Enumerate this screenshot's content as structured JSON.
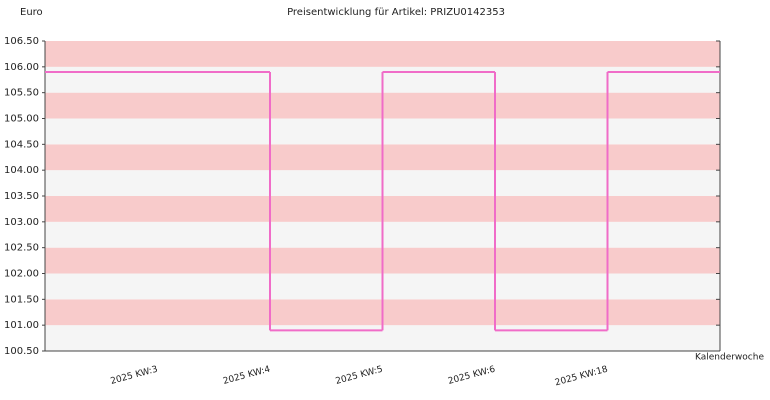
{
  "chart_data": {
    "type": "step",
    "title": "Preisentwicklung für Artikel: PRIZU0142353",
    "y_label": "Euro",
    "x_label": "Kalenderwoche",
    "categories": [
      null,
      "2025 KW:3",
      "2025 KW:4",
      "2025 KW:5",
      "2025 KW:6",
      "2025 KW:18"
    ],
    "series": [
      {
        "name": null,
        "color": "#f06cc8",
        "values": [
          105.9,
          105.9,
          100.9,
          105.9,
          100.9,
          105.9
        ]
      }
    ],
    "ylim": [
      100.5,
      106.5
    ],
    "yticks": [
      {
        "value": 100.5,
        "label": "100.50"
      },
      {
        "value": 101,
        "label": "101.00"
      },
      {
        "value": 101.5,
        "label": "101.50"
      },
      {
        "value": 102,
        "label": "102.00"
      },
      {
        "value": 102.5,
        "label": "102.50"
      },
      {
        "value": 103,
        "label": "103.00"
      },
      {
        "value": 103.5,
        "label": "103.50"
      },
      {
        "value": 104,
        "label": "104.00"
      },
      {
        "value": 104.5,
        "label": "104.50"
      },
      {
        "value": 105,
        "label": "105.00"
      },
      {
        "value": 105.5,
        "label": "105.50"
      },
      {
        "value": 106,
        "label": "106.00"
      },
      {
        "value": 106.5,
        "label": "106.50"
      }
    ],
    "band_colors": [
      "#f5f5f5",
      "#f8cbcb"
    ]
  }
}
